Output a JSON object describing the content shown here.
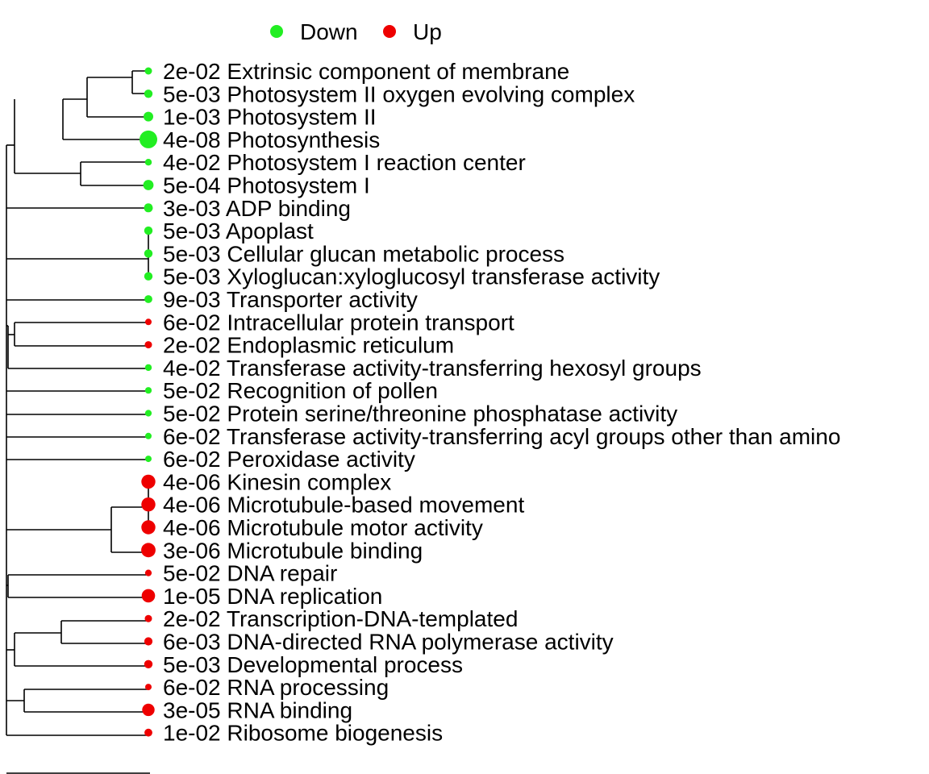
{
  "chart_data": {
    "type": "scatter",
    "title": "",
    "legend": {
      "placement": "top",
      "items": [
        {
          "label": "Down",
          "color": "#22ee22"
        },
        {
          "label": "Up",
          "color": "#ee0000"
        }
      ]
    },
    "terms": [
      {
        "pvalue": "2e-02",
        "term": "Extrinsic component of membrane",
        "direction": "Down",
        "p": 0.02
      },
      {
        "pvalue": "5e-03",
        "term": "Photosystem II oxygen evolving complex",
        "direction": "Down",
        "p": 0.005
      },
      {
        "pvalue": "1e-03",
        "term": "Photosystem II",
        "direction": "Down",
        "p": 0.001
      },
      {
        "pvalue": "4e-08",
        "term": "Photosynthesis",
        "direction": "Down",
        "p": 4e-08
      },
      {
        "pvalue": "4e-02",
        "term": "Photosystem I reaction center",
        "direction": "Down",
        "p": 0.04
      },
      {
        "pvalue": "5e-04",
        "term": "Photosystem I",
        "direction": "Down",
        "p": 0.0005
      },
      {
        "pvalue": "3e-03",
        "term": "ADP binding",
        "direction": "Down",
        "p": 0.003
      },
      {
        "pvalue": "5e-03",
        "term": "Apoplast",
        "direction": "Down",
        "p": 0.005
      },
      {
        "pvalue": "5e-03",
        "term": "Cellular glucan metabolic process",
        "direction": "Down",
        "p": 0.005
      },
      {
        "pvalue": "5e-03",
        "term": "Xyloglucan:xyloglucosyl transferase activity",
        "direction": "Down",
        "p": 0.005
      },
      {
        "pvalue": "9e-03",
        "term": "Transporter activity",
        "direction": "Down",
        "p": 0.009
      },
      {
        "pvalue": "6e-02",
        "term": "Intracellular protein transport",
        "direction": "Up",
        "p": 0.06
      },
      {
        "pvalue": "2e-02",
        "term": "Endoplasmic reticulum",
        "direction": "Up",
        "p": 0.02
      },
      {
        "pvalue": "4e-02",
        "term": "Transferase activity-transferring hexosyl groups",
        "direction": "Down",
        "p": 0.04
      },
      {
        "pvalue": "5e-02",
        "term": "Recognition of pollen",
        "direction": "Down",
        "p": 0.05
      },
      {
        "pvalue": "5e-02",
        "term": "Protein serine/threonine phosphatase activity",
        "direction": "Down",
        "p": 0.05
      },
      {
        "pvalue": "6e-02",
        "term": "Transferase activity-transferring acyl groups other than amino",
        "direction": "Down",
        "p": 0.06
      },
      {
        "pvalue": "6e-02",
        "term": "Peroxidase activity",
        "direction": "Down",
        "p": 0.06
      },
      {
        "pvalue": "4e-06",
        "term": "Kinesin complex",
        "direction": "Up",
        "p": 4e-06
      },
      {
        "pvalue": "4e-06",
        "term": "Microtubule-based movement",
        "direction": "Up",
        "p": 4e-06
      },
      {
        "pvalue": "4e-06",
        "term": "Microtubule motor activity",
        "direction": "Up",
        "p": 4e-06
      },
      {
        "pvalue": "3e-06",
        "term": "Microtubule binding",
        "direction": "Up",
        "p": 3e-06
      },
      {
        "pvalue": "5e-02",
        "term": "DNA repair",
        "direction": "Up",
        "p": 0.05
      },
      {
        "pvalue": "1e-05",
        "term": "DNA replication",
        "direction": "Up",
        "p": 1e-05
      },
      {
        "pvalue": "2e-02",
        "term": "Transcription-DNA-templated",
        "direction": "Up",
        "p": 0.02
      },
      {
        "pvalue": "6e-03",
        "term": "DNA-directed RNA polymerase activity",
        "direction": "Up",
        "p": 0.006
      },
      {
        "pvalue": "5e-03",
        "term": "Developmental process",
        "direction": "Up",
        "p": 0.005
      },
      {
        "pvalue": "6e-02",
        "term": "RNA processing",
        "direction": "Up",
        "p": 0.06
      },
      {
        "pvalue": "3e-05",
        "term": "RNA binding",
        "direction": "Up",
        "p": 3e-05
      },
      {
        "pvalue": "1e-02",
        "term": "Ribosome biogenesis",
        "direction": "Up",
        "p": 0.01
      }
    ],
    "grid": false
  }
}
